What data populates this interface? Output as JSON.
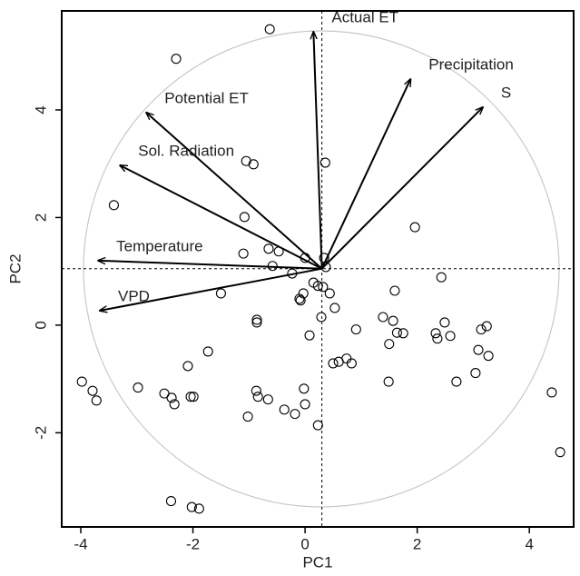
{
  "chart_data": {
    "type": "biplot",
    "x_label": "PC1",
    "y_label": "PC2",
    "xlim": [
      -4.34,
      4.79
    ],
    "ylim": [
      -3.75,
      5.84
    ],
    "xticks": [
      -4,
      -2,
      0,
      2,
      4
    ],
    "yticks": [
      -2,
      0,
      2,
      4
    ],
    "origin": {
      "x": 0.3,
      "y": 1.05
    },
    "points": {
      "x": [
        -0.63,
        -2.3,
        -1.05,
        -0.92,
        0.36,
        -1.08,
        -3.41,
        1.96,
        -1.1,
        -0.65,
        -0.47,
        -0.58,
        0,
        0.34,
        0.37,
        -0.23,
        0.15,
        0.23,
        0.32,
        -0.03,
        -0.08,
        -0.1,
        0.44,
        -1.5,
        0.53,
        0.29,
        2.43,
        1.6,
        -0.86,
        -0.86,
        0.08,
        0.91,
        1.39,
        1.57,
        1.64,
        1.75,
        1.5,
        2.49,
        2.33,
        2.36,
        2.59,
        3.24,
        3.14,
        3.09,
        3.27,
        0.5,
        0.6,
        0.74,
        0.83,
        -1.73,
        -2.09,
        1.49,
        2.7,
        3.04,
        -3.98,
        -3.79,
        -3.72,
        -2.98,
        -2.51,
        -2.38,
        -2.33,
        -2.04,
        -1.99,
        -0.87,
        -0.84,
        -0.66,
        -0.02,
        0,
        -0.37,
        -0.18,
        -1.02,
        0.23,
        4.4,
        4.55,
        -2.39,
        -2.02,
        -1.89
      ],
      "y": [
        5.5,
        4.95,
        3.05,
        2.99,
        3.02,
        2.01,
        2.23,
        1.82,
        1.33,
        1.42,
        1.37,
        1.1,
        1.25,
        1.25,
        1.08,
        0.96,
        0.79,
        0.73,
        0.71,
        0.59,
        0.46,
        0.49,
        0.59,
        0.59,
        0.32,
        0.15,
        0.89,
        0.64,
        0.1,
        0.05,
        -0.19,
        -0.08,
        0.15,
        0.08,
        -0.14,
        -0.15,
        -0.35,
        0.05,
        -0.15,
        -0.25,
        -0.2,
        -0.02,
        -0.08,
        -0.46,
        -0.57,
        -0.71,
        -0.68,
        -0.62,
        -0.71,
        -0.49,
        -0.76,
        -1.05,
        -1.05,
        -0.89,
        -1.05,
        -1.22,
        -1.4,
        -1.16,
        -1.27,
        -1.35,
        -1.47,
        -1.33,
        -1.33,
        -1.22,
        -1.33,
        -1.38,
        -1.18,
        -1.47,
        -1.57,
        -1.65,
        -1.7,
        -1.86,
        -1.25,
        -2.36,
        -3.27,
        -3.38,
        -3.41
      ]
    },
    "loadings": [
      {
        "name": "Actual ET",
        "x": 0.15,
        "y": 5.45
      },
      {
        "name": "Precipitation",
        "x": 1.88,
        "y": 4.57
      },
      {
        "name": "S",
        "x": 3.17,
        "y": 4.05
      },
      {
        "name": "Potential ET",
        "x": -2.83,
        "y": 3.95
      },
      {
        "name": "Sol. Radiation",
        "x": -3.3,
        "y": 2.97
      },
      {
        "name": "Temperature",
        "x": -3.69,
        "y": 1.2
      },
      {
        "name": "VPD",
        "x": -3.66,
        "y": 0.27
      }
    ]
  }
}
